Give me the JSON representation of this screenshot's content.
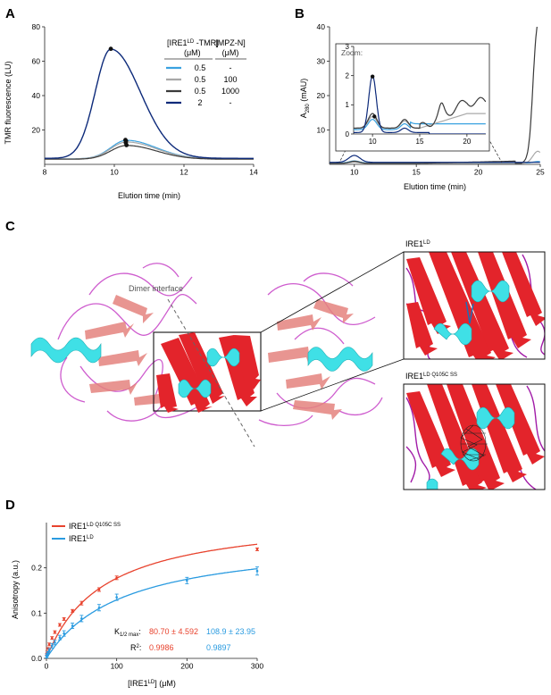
{
  "figure": {
    "panels": {
      "A": {
        "label": "A",
        "chart_data": {
          "type": "line",
          "xlabel": "Elution time (min)",
          "ylabel": "TMR fluorescence (LU)",
          "xlim": [
            8,
            14
          ],
          "ylim": [
            0,
            80
          ],
          "xticks": [
            8,
            10,
            12,
            14
          ],
          "yticks": [
            20,
            40,
            60,
            80
          ],
          "legend": {
            "header_1": [
              "[IRE1",
              "LD",
              " -TMR]",
              "(μM)"
            ],
            "header_2": [
              "[MPZ-N]",
              "(μM)"
            ],
            "rows": [
              {
                "c1": "0.5",
                "c2": "-",
                "color": "#3aa2e0"
              },
              {
                "c1": "0.5",
                "c2": "100",
                "color": "#a8a8a8"
              },
              {
                "c1": "0.5",
                "c2": "1000",
                "color": "#3a3a3a"
              },
              {
                "c1": "2",
                "c2": "-",
                "color": "#0d2a7a"
              }
            ]
          },
          "series": [
            {
              "color": "#3aa2e0",
              "peak_x": 10.35,
              "peak_y": 14,
              "base": 3.2,
              "markers": [
                [
                  10.32,
                  14.2
                ],
                [
                  10.34,
                  13.5
                ]
              ]
            },
            {
              "color": "#a8a8a8",
              "peak_x": 10.35,
              "peak_y": 13,
              "base": 3.2,
              "markers": [
                [
                  10.33,
                  12.6
                ]
              ]
            },
            {
              "color": "#3a3a3a",
              "peak_x": 10.35,
              "peak_y": 11,
              "base": 3.0,
              "markers": [
                [
                  10.35,
                  11.2
                ]
              ]
            },
            {
              "color": "#0d2a7a",
              "peak_x": 9.9,
              "peak_y": 67,
              "base": 3.5,
              "markers": [
                [
                  9.9,
                  67.2
                ]
              ]
            }
          ]
        }
      },
      "B": {
        "label": "B",
        "chart_data": {
          "type": "line",
          "xlabel": "Elution time (min)",
          "ylabel": [
            "A",
            "280",
            " (mAU)"
          ],
          "xlim": [
            8,
            25
          ],
          "ylim": [
            0,
            40
          ],
          "xticks": [
            10,
            15,
            20,
            25
          ],
          "yticks": [
            10,
            20,
            30,
            40
          ],
          "inset": {
            "title": "Zoom:",
            "xlim": [
              8,
              22
            ],
            "ylim": [
              0,
              3
            ],
            "xticks": [
              10,
              15,
              20
            ],
            "yticks": [
              0,
              1,
              2,
              3
            ]
          },
          "series": [
            {
              "color": "#3aa2e0"
            },
            {
              "color": "#a8a8a8"
            },
            {
              "color": "#3a3a3a"
            },
            {
              "color": "#0d2a7a"
            }
          ]
        }
      },
      "C": {
        "label": "C",
        "dimer_label": "Dimer interface",
        "zoom_1_label": [
          "IRE1",
          "LD"
        ],
        "zoom_2_label": [
          "IRE1",
          "LD Q105C SS"
        ]
      },
      "D": {
        "label": "D",
        "chart_data": {
          "type": "scatter",
          "xlabel": [
            "[IRE1",
            "LD",
            "] (μM)"
          ],
          "ylabel": "Anisotropy (a.u.)",
          "xlim": [
            0,
            300
          ],
          "ylim": [
            0,
            0.3
          ],
          "xticks": [
            0,
            100,
            200,
            300
          ],
          "yticks": [
            0.0,
            0.1,
            0.2
          ],
          "legend": [
            {
              "name": [
                "IRE1",
                "LD Q105C SS"
              ],
              "color": "#e8432e"
            },
            {
              "name": [
                "IRE1",
                "LD"
              ],
              "color": "#2a9be0"
            }
          ],
          "series": [
            {
              "color": "#e8432e",
              "bmax": 0.32,
              "kd": 80.7,
              "x": [
                0.5,
                1,
                2,
                4,
                8,
                12,
                19,
                25,
                37,
                50,
                75,
                100,
                300
              ],
              "y": [
                0.008,
                0.014,
                0.022,
                0.031,
                0.045,
                0.058,
                0.074,
                0.087,
                0.105,
                0.122,
                0.152,
                0.178,
                0.241
              ],
              "err": [
                0.002,
                0.002,
                0.002,
                0.003,
                0.003,
                0.003,
                0.003,
                0.003,
                0.003,
                0.004,
                0.004,
                0.004,
                0.003
              ]
            },
            {
              "color": "#2a9be0",
              "bmax": 0.27,
              "kd": 108.9,
              "x": [
                0.5,
                1,
                2,
                4,
                8,
                12,
                19,
                25,
                37,
                50,
                75,
                100,
                200,
                300
              ],
              "y": [
                0.004,
                0.008,
                0.012,
                0.018,
                0.028,
                0.035,
                0.046,
                0.055,
                0.072,
                0.088,
                0.112,
                0.135,
                0.172,
                0.193
              ],
              "err": [
                0.003,
                0.003,
                0.003,
                0.004,
                0.005,
                0.005,
                0.005,
                0.006,
                0.006,
                0.007,
                0.007,
                0.007,
                0.007,
                0.009
              ]
            }
          ],
          "stats": {
            "k_label": "K",
            "k_sub": "1/2 max",
            "k_colon": ":",
            "k_values": [
              "80.70 ± 4.592",
              "108.9 ± 23.95"
            ],
            "r_label": "R",
            "r_sup": "2",
            "r_colon": ":",
            "r_values": [
              "0.9986",
              "0.9897"
            ],
            "colors": [
              "#e8432e",
              "#2a9be0"
            ]
          }
        }
      }
    }
  }
}
